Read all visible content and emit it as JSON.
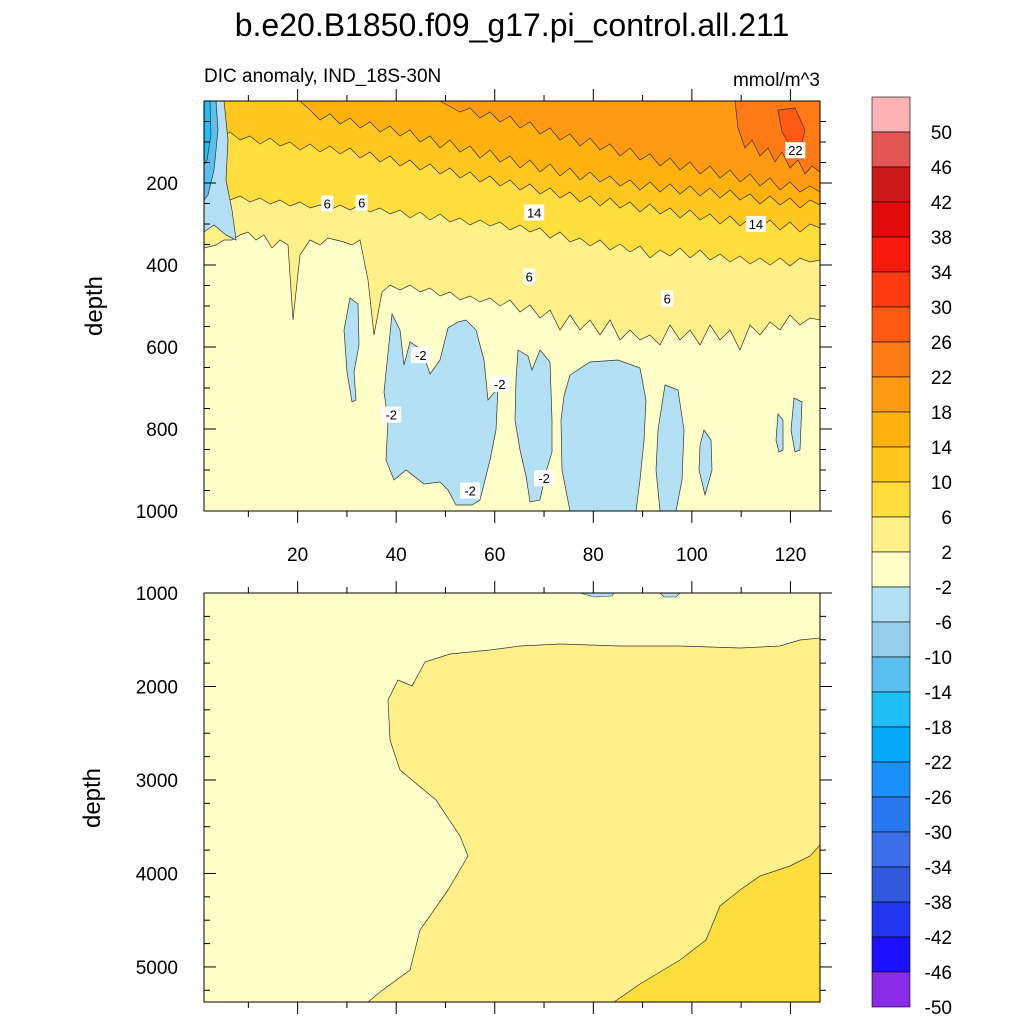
{
  "chart_data": {
    "type": "heatmap",
    "title": "b.e20.B1850.f09_g17.pi_control.all.211",
    "subtitle_left": "DIC anomaly, IND_18S-30N",
    "subtitle_right": "mmol/m^3",
    "ylabel": "depth",
    "x_range": [
      1,
      126
    ],
    "x_ticks": [
      "20",
      "40",
      "60",
      "80",
      "100",
      "120"
    ],
    "panels": [
      {
        "name": "upper",
        "ylim": [
          0,
          1000
        ],
        "y_ticks": [
          "200",
          "400",
          "600",
          "800",
          "1000"
        ],
        "contour_labels": [
          {
            "text": "6",
            "x": 26,
            "y": 250
          },
          {
            "text": "6",
            "x": 33,
            "y": 248
          },
          {
            "text": "14",
            "x": 68,
            "y": 272
          },
          {
            "text": "14",
            "x": 113,
            "y": 300
          },
          {
            "text": "22",
            "x": 121,
            "y": 120
          },
          {
            "text": "6",
            "x": 67,
            "y": 428
          },
          {
            "text": "6",
            "x": 95,
            "y": 482
          },
          {
            "text": "-2",
            "x": 45,
            "y": 620
          },
          {
            "text": "-2",
            "x": 39,
            "y": 765
          },
          {
            "text": "-2",
            "x": 61,
            "y": 690
          },
          {
            "text": "-2",
            "x": 55,
            "y": 950
          },
          {
            "text": "-2",
            "x": 70,
            "y": 920
          }
        ]
      },
      {
        "name": "lower",
        "ylim": [
          1000,
          5375
        ],
        "y_ticks": [
          "1000",
          "2000",
          "3000",
          "4000",
          "5000"
        ],
        "contour_labels": []
      }
    ],
    "colorbar": {
      "labels": [
        "50",
        "46",
        "42",
        "38",
        "34",
        "30",
        "26",
        "22",
        "18",
        "14",
        "10",
        "6",
        "2",
        "-2",
        "-6",
        "-10",
        "-14",
        "-18",
        "-22",
        "-26",
        "-30",
        "-34",
        "-38",
        "-42",
        "-46",
        "-50"
      ],
      "colors": [
        "#fdb3b5",
        "#e35654",
        "#cc1818",
        "#e10b0b",
        "#f71a0c",
        "#ff3a12",
        "#ff5a14",
        "#ff7a14",
        "#ff9a12",
        "#ffb10f",
        "#ffc71f",
        "#ffde3d",
        "#fff08a",
        "#ffffc8",
        "#b3e0f5",
        "#95cdec",
        "#59c0f0",
        "#21bdf5",
        "#06a9fc",
        "#1a91fa",
        "#2a78f0",
        "#3b6ee8",
        "#3158dd",
        "#2236f0",
        "#1c10ff",
        "#8a2be8"
      ]
    }
  }
}
